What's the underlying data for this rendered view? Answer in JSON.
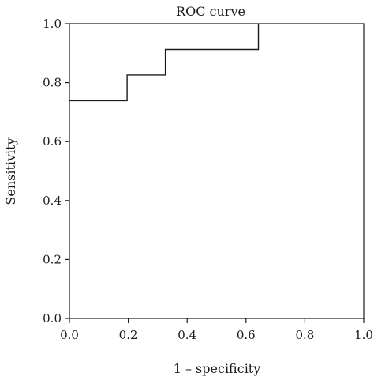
{
  "chart_data": {
    "type": "line",
    "title": "ROC curve",
    "xlabel": "1 – specificity",
    "ylabel": "Sensitivity",
    "xlim": [
      0,
      1
    ],
    "ylim": [
      0,
      1
    ],
    "x_ticks": [
      0.0,
      0.2,
      0.4,
      0.6,
      0.8,
      1.0
    ],
    "x_tick_labels": [
      "0.0",
      "0.2",
      "0.4",
      "0.6",
      "0.8",
      "1.0"
    ],
    "y_ticks": [
      0.0,
      0.2,
      0.4,
      0.6,
      0.8,
      1.0
    ],
    "y_tick_labels": [
      "0.0",
      "0.2",
      "0.4",
      "0.6",
      "0.8",
      "1.0"
    ],
    "grid": false,
    "legend": "none",
    "line_color": "#1a1a1a",
    "series": [
      {
        "step": "post",
        "x": [
          0.0,
          0.196,
          0.196,
          0.326,
          0.326,
          0.642,
          0.642
        ],
        "y": [
          0.739,
          0.739,
          0.826,
          0.826,
          0.913,
          0.913,
          1.0
        ]
      }
    ]
  }
}
